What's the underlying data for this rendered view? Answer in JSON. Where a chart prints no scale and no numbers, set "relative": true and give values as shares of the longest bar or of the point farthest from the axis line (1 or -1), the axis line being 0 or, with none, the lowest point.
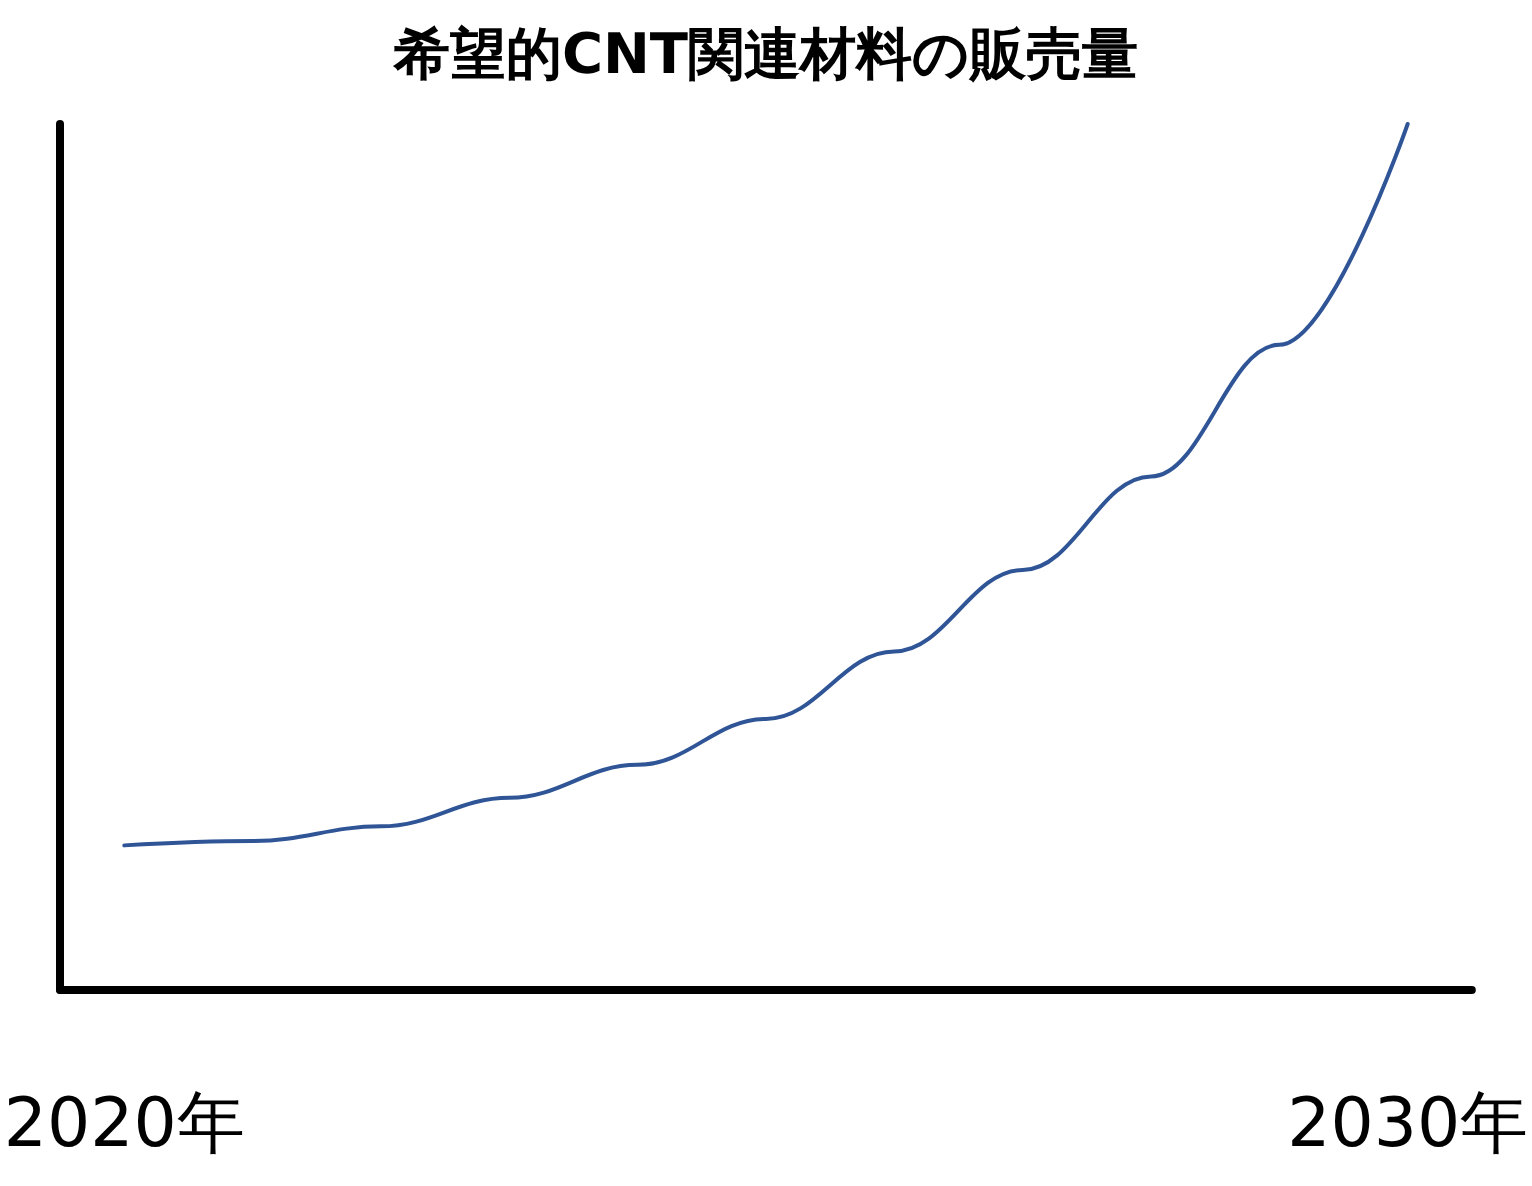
{
  "chart_data": {
    "type": "line",
    "title": "希望的CNT関連材料の販売量",
    "relative": true,
    "categories": [
      "2020年",
      null,
      null,
      null,
      null,
      null,
      null,
      null,
      null,
      null,
      "2030年"
    ],
    "series": [
      {
        "color": "#2f5597",
        "values": [
          0.167,
          0.172,
          0.189,
          0.222,
          0.26,
          0.313,
          0.391,
          0.485,
          0.593,
          0.745,
          1
        ]
      }
    ],
    "grid": false,
    "marker": "none",
    "line_style": "solid"
  }
}
